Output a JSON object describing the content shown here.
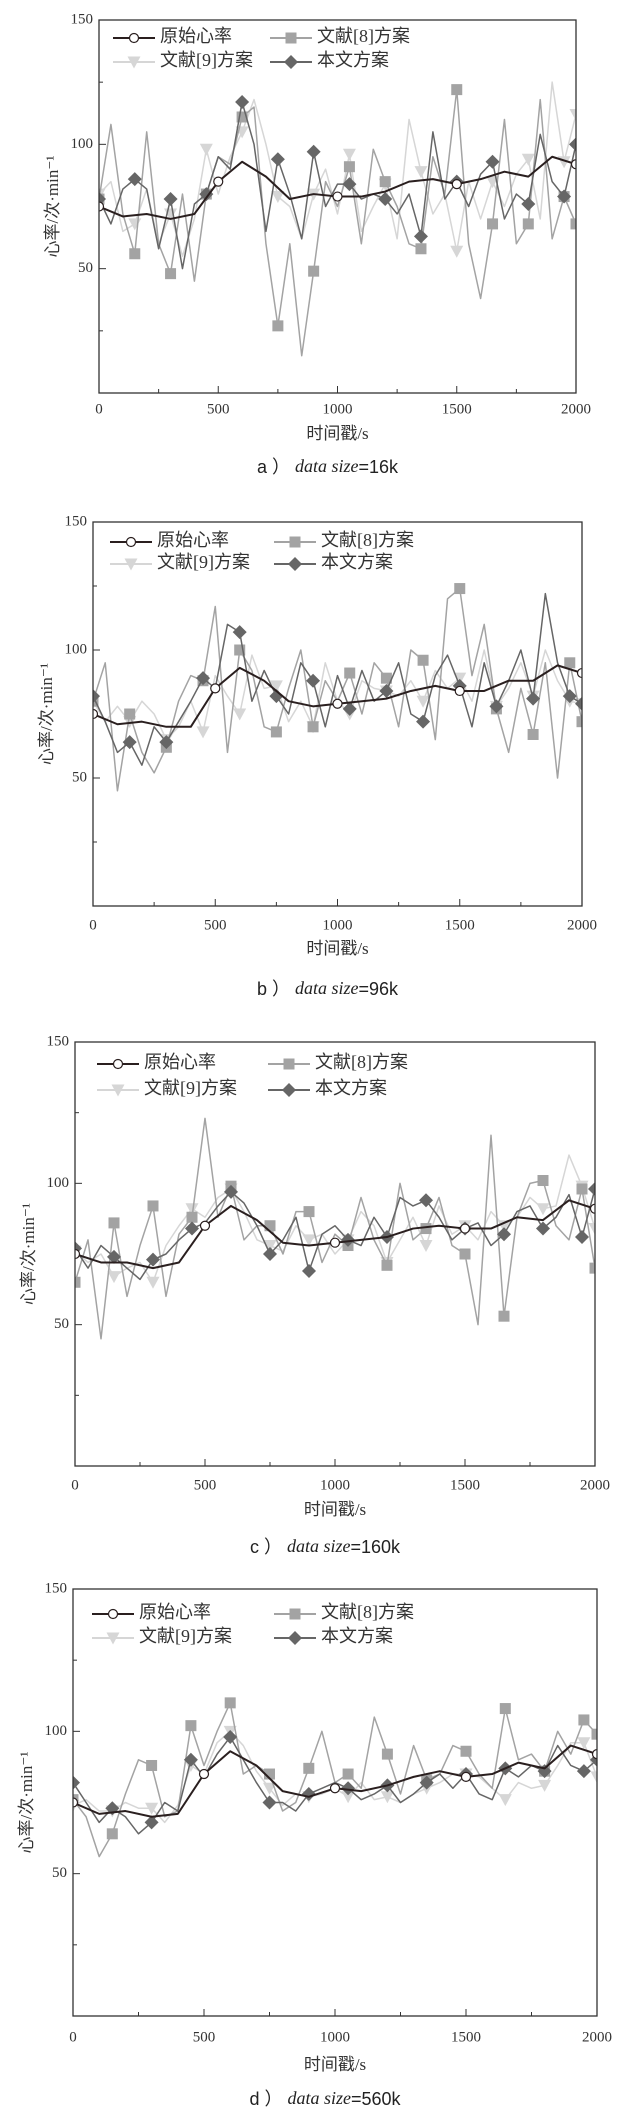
{
  "chart_data": [
    {
      "type": "line",
      "caption": {
        "label": "a ）",
        "italic": "data size",
        "value": "=16k"
      },
      "xlabel": "时间戳/s",
      "ylabel": "心率/次·min⁻¹",
      "xlim": [
        0,
        2000
      ],
      "ylim": [
        0,
        150
      ],
      "xticks": [
        "0",
        "500",
        "1000",
        "1500",
        "2000"
      ],
      "yticks": [
        "50",
        "100",
        "150"
      ],
      "legend_placement": "top-left",
      "x_step_original": 100,
      "x_step": 50,
      "series": [
        {
          "name": "原始心率",
          "color": "#2a1f1f",
          "marker": "circle",
          "values": [
            75,
            71,
            72,
            70,
            72,
            85,
            93,
            87,
            78,
            80,
            79,
            79,
            81,
            85,
            86,
            84,
            86,
            89,
            87,
            95,
            92
          ]
        },
        {
          "name": "文献[8]方案",
          "color": "#a3a3a3",
          "marker": "square",
          "values": [
            78,
            108,
            72,
            56,
            105,
            60,
            48,
            80,
            45,
            80,
            95,
            92,
            111,
            115,
            60,
            27,
            60,
            15,
            49,
            85,
            75,
            91,
            60,
            98,
            85,
            75,
            60,
            58,
            95,
            80,
            122,
            60,
            38,
            68,
            110,
            60,
            68,
            118,
            62,
            79,
            68
          ]
        },
        {
          "name": "文献[9]方案",
          "color": "#d6d6d6",
          "marker": "triangle",
          "values": [
            80,
            85,
            65,
            68,
            82,
            60,
            72,
            55,
            70,
            98,
            80,
            95,
            105,
            118,
            100,
            79,
            75,
            62,
            80,
            90,
            72,
            96,
            65,
            75,
            84,
            62,
            110,
            89,
            72,
            80,
            57,
            85,
            70,
            85,
            75,
            88,
            94,
            70,
            125,
            93,
            112
          ]
        },
        {
          "name": "本文方案",
          "color": "#666666",
          "marker": "diamond",
          "values": [
            78,
            68,
            82,
            86,
            82,
            58,
            78,
            50,
            76,
            80,
            95,
            90,
            117,
            100,
            65,
            94,
            80,
            62,
            97,
            75,
            84,
            84,
            78,
            80,
            78,
            72,
            80,
            63,
            105,
            78,
            85,
            75,
            88,
            93,
            70,
            80,
            76,
            104,
            85,
            79,
            100
          ]
        }
      ]
    },
    {
      "type": "line",
      "caption": {
        "label": "b ）",
        "italic": "data size",
        "value": "=96k"
      },
      "xlabel": "时间戳/s",
      "ylabel": "心率/次·min⁻¹",
      "xlim": [
        0,
        2000
      ],
      "ylim": [
        0,
        150
      ],
      "xticks": [
        "0",
        "500",
        "1000",
        "1500",
        "2000"
      ],
      "yticks": [
        "50",
        "100",
        "150"
      ],
      "legend_placement": "top-left",
      "x_step_original": 100,
      "x_step": 50,
      "series": [
        {
          "name": "原始心率",
          "color": "#2a1f1f",
          "marker": "circle",
          "values": [
            75,
            71,
            72,
            70,
            70,
            85,
            93,
            88,
            80,
            78,
            79,
            80,
            81,
            84,
            86,
            84,
            84,
            88,
            88,
            94,
            91
          ]
        },
        {
          "name": "文献[8]方案",
          "color": "#a3a3a3",
          "marker": "square",
          "values": [
            80,
            95,
            45,
            75,
            60,
            52,
            62,
            80,
            90,
            88,
            117,
            60,
            100,
            92,
            70,
            68,
            85,
            100,
            70,
            88,
            80,
            91,
            75,
            95,
            89,
            70,
            100,
            96,
            65,
            120,
            124,
            90,
            110,
            77,
            60,
            85,
            67,
            95,
            50,
            95,
            72
          ]
        },
        {
          "name": "文献[9]方案",
          "color": "#d6d6d6",
          "marker": "triangle",
          "values": [
            80,
            72,
            78,
            72,
            80,
            75,
            65,
            70,
            80,
            68,
            90,
            82,
            75,
            98,
            85,
            86,
            72,
            80,
            70,
            95,
            80,
            75,
            88,
            85,
            84,
            82,
            88,
            80,
            92,
            85,
            89,
            80,
            100,
            78,
            85,
            95,
            82,
            100,
            88,
            80,
            79
          ]
        },
        {
          "name": "本文方案",
          "color": "#666666",
          "marker": "diamond",
          "values": [
            82,
            72,
            60,
            64,
            55,
            70,
            64,
            72,
            80,
            89,
            85,
            110,
            107,
            80,
            92,
            82,
            75,
            95,
            88,
            70,
            90,
            77,
            92,
            80,
            84,
            95,
            75,
            72,
            90,
            98,
            86,
            70,
            95,
            78,
            88,
            100,
            81,
            122,
            95,
            82,
            79
          ]
        }
      ]
    },
    {
      "type": "line",
      "caption": {
        "label": "c ）",
        "italic": "data size",
        "value": "=160k"
      },
      "xlabel": "时间戳/s",
      "ylabel": "心率/次·min⁻¹",
      "xlim": [
        0,
        2000
      ],
      "ylim": [
        0,
        150
      ],
      "xticks": [
        "0",
        "500",
        "1000",
        "1500",
        "2000"
      ],
      "yticks": [
        "50",
        "100",
        "150"
      ],
      "legend_placement": "top-left",
      "x_step_original": 100,
      "x_step": 50,
      "series": [
        {
          "name": "原始心率",
          "color": "#2a1f1f",
          "marker": "circle",
          "values": [
            75,
            72,
            72,
            70,
            72,
            85,
            92,
            87,
            79,
            78,
            79,
            80,
            81,
            84,
            85,
            84,
            84,
            88,
            87,
            94,
            91
          ]
        },
        {
          "name": "文献[8]方案",
          "color": "#a3a3a3",
          "marker": "square",
          "values": [
            65,
            80,
            45,
            86,
            60,
            78,
            92,
            60,
            82,
            88,
            123,
            88,
            99,
            80,
            85,
            85,
            75,
            90,
            90,
            72,
            82,
            78,
            95,
            80,
            71,
            100,
            80,
            84,
            95,
            78,
            75,
            50,
            117,
            53,
            88,
            100,
            101,
            85,
            80,
            98,
            70
          ]
        },
        {
          "name": "文献[9]方案",
          "color": "#d6d6d6",
          "marker": "triangle",
          "values": [
            76,
            72,
            75,
            67,
            70,
            72,
            65,
            78,
            85,
            91,
            88,
            95,
            98,
            90,
            80,
            78,
            76,
            85,
            80,
            82,
            75,
            80,
            90,
            85,
            72,
            80,
            88,
            78,
            92,
            82,
            85,
            80,
            90,
            85,
            88,
            95,
            91,
            92,
            110,
            99,
            84
          ]
        },
        {
          "name": "本文方案",
          "color": "#666666",
          "marker": "diamond",
          "values": [
            77,
            70,
            78,
            74,
            70,
            66,
            73,
            75,
            80,
            84,
            86,
            92,
            97,
            93,
            85,
            75,
            80,
            88,
            69,
            82,
            85,
            80,
            78,
            88,
            81,
            95,
            92,
            94,
            88,
            80,
            84,
            86,
            78,
            82,
            90,
            92,
            84,
            88,
            96,
            81,
            98
          ]
        }
      ]
    },
    {
      "type": "line",
      "caption": {
        "label": "d ）",
        "italic": "data size",
        "value": "=560k"
      },
      "xlabel": "时间戳/s",
      "ylabel": "心率/次·min⁻¹",
      "xlim": [
        0,
        2000
      ],
      "ylim": [
        0,
        150
      ],
      "xticks": [
        "0",
        "500",
        "1000",
        "1500",
        "2000"
      ],
      "yticks": [
        "50",
        "100",
        "150"
      ],
      "legend_placement": "top-left",
      "x_step_original": 100,
      "x_step": 50,
      "series": [
        {
          "name": "原始心率",
          "color": "#2a1f1f",
          "marker": "circle",
          "values": [
            75,
            71,
            72,
            70,
            71,
            85,
            93,
            88,
            79,
            77,
            80,
            79,
            81,
            84,
            86,
            84,
            85,
            89,
            87,
            95,
            92
          ]
        },
        {
          "name": "文献[8]方案",
          "color": "#a3a3a3",
          "marker": "square",
          "values": [
            76,
            70,
            56,
            64,
            78,
            90,
            88,
            70,
            72,
            102,
            88,
            100,
            110,
            85,
            88,
            85,
            72,
            75,
            87,
            100,
            82,
            85,
            80,
            105,
            92,
            78,
            95,
            83,
            85,
            95,
            93,
            85,
            80,
            108,
            90,
            92,
            86,
            100,
            92,
            104,
            99
          ]
        },
        {
          "name": "文献[9]方案",
          "color": "#d6d6d6",
          "marker": "triangle",
          "values": [
            74,
            76,
            72,
            72,
            75,
            73,
            73,
            68,
            74,
            88,
            85,
            96,
            100,
            95,
            86,
            80,
            74,
            78,
            77,
            78,
            80,
            77,
            82,
            76,
            77,
            75,
            78,
            80,
            82,
            85,
            85,
            84,
            80,
            76,
            82,
            80,
            81,
            88,
            96,
            96,
            84
          ]
        },
        {
          "name": "本文方案",
          "color": "#666666",
          "marker": "diamond",
          "values": [
            82,
            75,
            68,
            73,
            70,
            64,
            68,
            75,
            72,
            90,
            84,
            92,
            98,
            90,
            82,
            75,
            75,
            72,
            78,
            80,
            82,
            80,
            76,
            78,
            81,
            75,
            78,
            82,
            85,
            80,
            85,
            78,
            76,
            87,
            84,
            88,
            86,
            95,
            88,
            86,
            90
          ]
        }
      ]
    }
  ]
}
